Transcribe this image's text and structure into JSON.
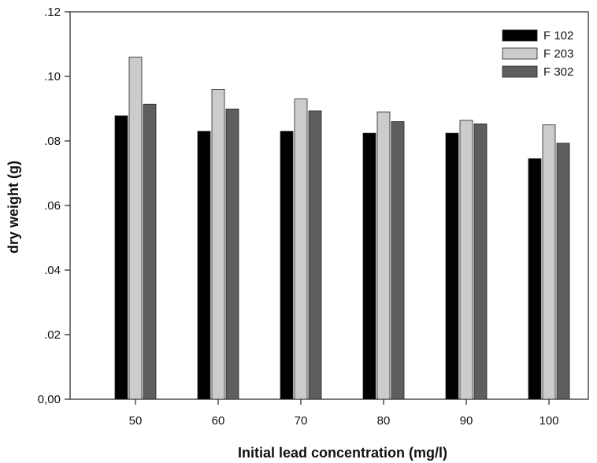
{
  "chart_data": {
    "type": "bar",
    "title": "",
    "xlabel": "Initial lead concentration (mg/l)",
    "ylabel": "dry weight (g)",
    "categories": [
      "50",
      "60",
      "70",
      "80",
      "90",
      "100"
    ],
    "ylim": [
      0,
      0.12
    ],
    "yticks": [
      {
        "value": 0.0,
        "label": "0,00"
      },
      {
        "value": 0.02,
        "label": ".02"
      },
      {
        "value": 0.04,
        "label": ".04"
      },
      {
        "value": 0.06,
        "label": ".06"
      },
      {
        "value": 0.08,
        "label": ".08"
      },
      {
        "value": 0.1,
        "label": ".10"
      },
      {
        "value": 0.12,
        "label": ".12"
      }
    ],
    "series": [
      {
        "name": "F 102",
        "color": "#000000",
        "values": [
          0.0878,
          0.083,
          0.083,
          0.0824,
          0.0824,
          0.0745
        ]
      },
      {
        "name": "F 203",
        "color": "#cccccc",
        "values": [
          0.106,
          0.096,
          0.093,
          0.089,
          0.0864,
          0.085
        ]
      },
      {
        "name": "F 302",
        "color": "#5e5e5e",
        "values": [
          0.0914,
          0.0899,
          0.0893,
          0.086,
          0.0853,
          0.0793
        ]
      }
    ],
    "legend": "top-right",
    "grid": false
  }
}
